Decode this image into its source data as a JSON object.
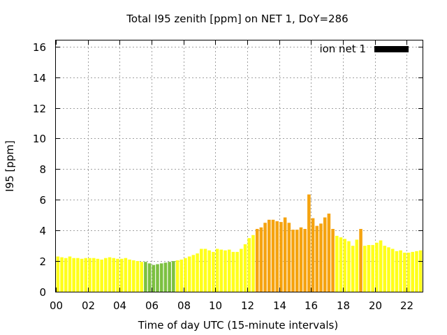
{
  "chart_data": {
    "type": "bar",
    "title": "Total I95 zenith [ppm] on NET 1, DoY=286",
    "xlabel": "Time of day UTC (15-minute intervals)",
    "ylabel": "I95 [ppm]",
    "ylim": [
      0,
      16.4
    ],
    "xlim": [
      0,
      23
    ],
    "yticks": [
      0,
      2,
      4,
      6,
      8,
      10,
      12,
      14,
      16
    ],
    "xticks": [
      0,
      2,
      4,
      6,
      8,
      10,
      12,
      14,
      16,
      18,
      20,
      22
    ],
    "xtick_labels": [
      "00",
      "02",
      "04",
      "06",
      "08",
      "10",
      "12",
      "14",
      "16",
      "18",
      "20",
      "22"
    ],
    "grid": true,
    "legend": {
      "label": "ion net 1",
      "placement": "top-right",
      "color": "#000000"
    },
    "colors": {
      "yellow": "#ffff1a",
      "orange": "#f5a310",
      "green": "#7cc040"
    },
    "bar_interval_hours": 0.25,
    "x": [
      0.0,
      0.25,
      0.5,
      0.75,
      1.0,
      1.25,
      1.5,
      1.75,
      2.0,
      2.25,
      2.5,
      2.75,
      3.0,
      3.25,
      3.5,
      3.75,
      4.0,
      4.25,
      4.5,
      4.75,
      5.0,
      5.25,
      5.5,
      5.75,
      6.0,
      6.25,
      6.5,
      6.75,
      7.0,
      7.25,
      7.5,
      7.75,
      8.0,
      8.25,
      8.5,
      8.75,
      9.0,
      9.25,
      9.5,
      9.75,
      10.0,
      10.25,
      10.5,
      10.75,
      11.0,
      11.25,
      11.5,
      11.75,
      12.0,
      12.25,
      12.5,
      12.75,
      13.0,
      13.25,
      13.5,
      13.75,
      14.0,
      14.25,
      14.5,
      14.75,
      15.0,
      15.25,
      15.5,
      15.75,
      16.0,
      16.25,
      16.5,
      16.75,
      17.0,
      17.25,
      17.5,
      17.75,
      18.0,
      18.25,
      18.5,
      18.75,
      19.0,
      19.25,
      19.5,
      19.75,
      20.0,
      20.25,
      20.5,
      20.75,
      21.0,
      21.25,
      21.5,
      21.75,
      22.0,
      22.25,
      22.5,
      22.75
    ],
    "values": [
      2.3,
      2.25,
      2.2,
      2.3,
      2.2,
      2.2,
      2.15,
      2.2,
      2.2,
      2.2,
      2.15,
      2.1,
      2.2,
      2.25,
      2.2,
      2.15,
      2.15,
      2.2,
      2.1,
      2.05,
      2.0,
      1.95,
      1.95,
      1.85,
      1.75,
      1.8,
      1.85,
      1.9,
      1.95,
      2.0,
      2.05,
      2.1,
      2.2,
      2.3,
      2.4,
      2.5,
      2.8,
      2.8,
      2.7,
      2.6,
      2.8,
      2.75,
      2.7,
      2.75,
      2.6,
      2.6,
      2.8,
      3.1,
      3.5,
      3.7,
      4.1,
      4.2,
      4.5,
      4.7,
      4.7,
      4.6,
      4.55,
      4.85,
      4.5,
      4.05,
      4.05,
      4.2,
      4.1,
      6.35,
      4.8,
      4.3,
      4.45,
      4.85,
      5.1,
      4.1,
      3.65,
      3.55,
      3.45,
      3.3,
      3.0,
      3.4,
      4.1,
      3.0,
      3.05,
      3.05,
      3.2,
      3.35,
      3.0,
      2.9,
      2.8,
      2.65,
      2.7,
      2.55,
      2.55,
      2.6,
      2.65,
      2.7
    ],
    "bar_colors": [
      "yellow",
      "yellow",
      "yellow",
      "yellow",
      "yellow",
      "yellow",
      "yellow",
      "yellow",
      "yellow",
      "yellow",
      "yellow",
      "yellow",
      "yellow",
      "yellow",
      "yellow",
      "yellow",
      "yellow",
      "yellow",
      "yellow",
      "yellow",
      "yellow",
      "yellow",
      "green",
      "green",
      "green",
      "green",
      "green",
      "green",
      "green",
      "green",
      "yellow",
      "yellow",
      "yellow",
      "yellow",
      "yellow",
      "yellow",
      "yellow",
      "yellow",
      "yellow",
      "yellow",
      "yellow",
      "yellow",
      "yellow",
      "yellow",
      "yellow",
      "yellow",
      "yellow",
      "yellow",
      "yellow",
      "yellow",
      "orange",
      "orange",
      "orange",
      "orange",
      "orange",
      "orange",
      "orange",
      "orange",
      "orange",
      "orange",
      "orange",
      "orange",
      "orange",
      "orange",
      "orange",
      "orange",
      "orange",
      "orange",
      "orange",
      "orange",
      "yellow",
      "yellow",
      "yellow",
      "yellow",
      "yellow",
      "yellow",
      "orange",
      "yellow",
      "yellow",
      "yellow",
      "yellow",
      "yellow",
      "yellow",
      "yellow",
      "yellow",
      "yellow",
      "yellow",
      "yellow",
      "yellow",
      "yellow",
      "yellow",
      "yellow"
    ]
  }
}
